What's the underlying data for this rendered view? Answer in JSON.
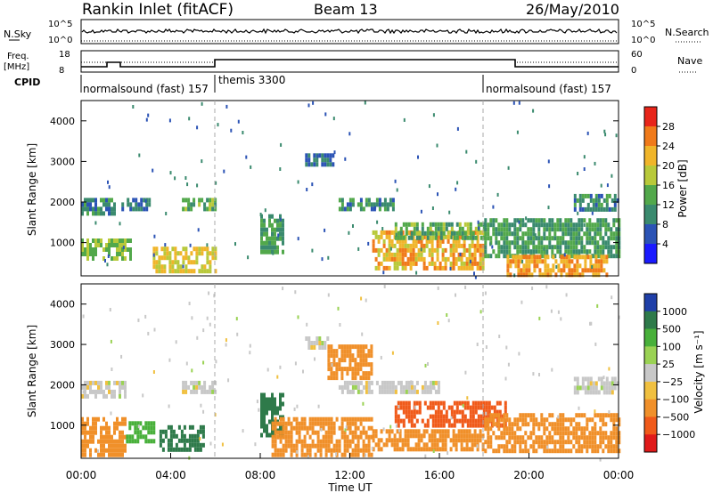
{
  "header": {
    "title": "Rankin Inlet (fitACF)",
    "beam": "Beam 13",
    "date": "26/May/2010"
  },
  "top_panels": {
    "nsky_label": "N.Sky",
    "nsky_ticks": [
      "10^5",
      "10^0"
    ],
    "nsearch_label": "N.Search",
    "nsearch_ticks": [
      "10^5",
      "10^0"
    ],
    "freq_label_1": "Freq.",
    "freq_label_2": "[MHz]",
    "freq_ticks": [
      "18",
      "8"
    ],
    "nave_label": "Nave",
    "nave_ticks": [
      "60",
      "0"
    ],
    "cpid_label": "CPID",
    "cpid_segments": [
      {
        "label": "normalsound (fast) 157",
        "start_h": 0,
        "end_h": 6
      },
      {
        "label": "themis 3300",
        "start_h": 6,
        "end_h": 18
      },
      {
        "label": "normalsound (fast) 157",
        "start_h": 18,
        "end_h": 24
      }
    ]
  },
  "power_colorbar": {
    "label": "Power [dB]",
    "ticks": [
      "4",
      "8",
      "12",
      "16",
      "20",
      "24",
      "28"
    ],
    "colors": [
      "#1a1aff",
      "#2b53b5",
      "#3a8a6e",
      "#52a84b",
      "#b8c93a",
      "#f0b52a",
      "#f07a1a",
      "#e8251a"
    ]
  },
  "velocity_colorbar": {
    "label": "Velocity [m s⁻¹]",
    "ticks": [
      "1000",
      "500",
      "100",
      "25",
      "−25",
      "−100",
      "−500",
      "−1000"
    ],
    "colors": [
      "#1f3fa8",
      "#2e7a4a",
      "#48b03a",
      "#9ad254",
      "#c8c8c8",
      "#f0c040",
      "#f0902a",
      "#f05a1a",
      "#e01a1a"
    ]
  },
  "chart_data": [
    {
      "type": "heatmap",
      "panel": "power",
      "xlabel": "",
      "ylabel": "Slant Range [km]",
      "xlim_hours": [
        0,
        24
      ],
      "ylim": [
        180,
        4500
      ],
      "yticks": [
        "1000",
        "2000",
        "3000",
        "4000"
      ],
      "regions": [
        {
          "t0": 0.0,
          "t1": 2.2,
          "r0": 600,
          "r1": 1100,
          "power": 16
        },
        {
          "t0": 0.0,
          "t1": 1.5,
          "r0": 1700,
          "r1": 2100,
          "power": 10
        },
        {
          "t0": 1.8,
          "t1": 3.0,
          "r0": 1800,
          "r1": 2100,
          "power": 8
        },
        {
          "t0": 3.2,
          "t1": 6.0,
          "r0": 300,
          "r1": 900,
          "power": 20
        },
        {
          "t0": 4.5,
          "t1": 6.0,
          "r0": 1800,
          "r1": 2100,
          "power": 14
        },
        {
          "t0": 8.0,
          "t1": 9.0,
          "r0": 800,
          "r1": 1700,
          "power": 12
        },
        {
          "t0": 10.0,
          "t1": 11.2,
          "r0": 2900,
          "r1": 3200,
          "power": 8
        },
        {
          "t0": 11.5,
          "t1": 14.0,
          "r0": 1800,
          "r1": 2100,
          "power": 10
        },
        {
          "t0": 13.0,
          "t1": 18.0,
          "r0": 400,
          "r1": 1300,
          "power": 22
        },
        {
          "t0": 14.0,
          "t1": 18.0,
          "r0": 1100,
          "r1": 1500,
          "power": 14
        },
        {
          "t0": 18.0,
          "t1": 24.0,
          "r0": 700,
          "r1": 1600,
          "power": 12
        },
        {
          "t0": 19.0,
          "t1": 23.5,
          "r0": 200,
          "r1": 700,
          "power": 24
        },
        {
          "t0": 22.0,
          "t1": 24.0,
          "r0": 1800,
          "r1": 2200,
          "power": 10
        }
      ]
    },
    {
      "type": "heatmap",
      "panel": "velocity",
      "xlabel": "Time UT",
      "ylabel": "Slant Range [km]",
      "xlim_hours": [
        0,
        24
      ],
      "ylim": [
        180,
        4500
      ],
      "xticks": [
        "00:00",
        "04:00",
        "08:00",
        "12:00",
        "16:00",
        "20:00",
        "00:00"
      ],
      "yticks": [
        "1000",
        "2000",
        "3000",
        "4000"
      ],
      "regions": [
        {
          "t0": 0.0,
          "t1": 2.0,
          "r0": 300,
          "r1": 1200,
          "velocity": -100
        },
        {
          "t0": 0.0,
          "t1": 2.0,
          "r0": 1700,
          "r1": 2100,
          "velocity": 0
        },
        {
          "t0": 2.0,
          "t1": 3.2,
          "r0": 600,
          "r1": 1100,
          "velocity": 100
        },
        {
          "t0": 3.5,
          "t1": 5.5,
          "r0": 400,
          "r1": 1000,
          "velocity": 500
        },
        {
          "t0": 4.5,
          "t1": 6.0,
          "r0": 1800,
          "r1": 2100,
          "velocity": 0
        },
        {
          "t0": 8.0,
          "t1": 9.0,
          "r0": 700,
          "r1": 1800,
          "velocity": 700
        },
        {
          "t0": 10.0,
          "t1": 11.0,
          "r0": 2900,
          "r1": 3200,
          "velocity": 0
        },
        {
          "t0": 11.0,
          "t1": 13.0,
          "r0": 2200,
          "r1": 3000,
          "velocity": -100
        },
        {
          "t0": 8.5,
          "t1": 13.0,
          "r0": 300,
          "r1": 1200,
          "velocity": -100
        },
        {
          "t0": 13.0,
          "t1": 18.0,
          "r0": 400,
          "r1": 900,
          "velocity": -100
        },
        {
          "t0": 14.0,
          "t1": 19.0,
          "r0": 1000,
          "r1": 1600,
          "velocity": -500
        },
        {
          "t0": 11.5,
          "t1": 16.0,
          "r0": 1800,
          "r1": 2100,
          "velocity": 0
        },
        {
          "t0": 18.0,
          "t1": 24.0,
          "r0": 400,
          "r1": 1300,
          "velocity": -100
        },
        {
          "t0": 22.0,
          "t1": 24.0,
          "r0": 1800,
          "r1": 2200,
          "velocity": 0
        }
      ]
    }
  ]
}
